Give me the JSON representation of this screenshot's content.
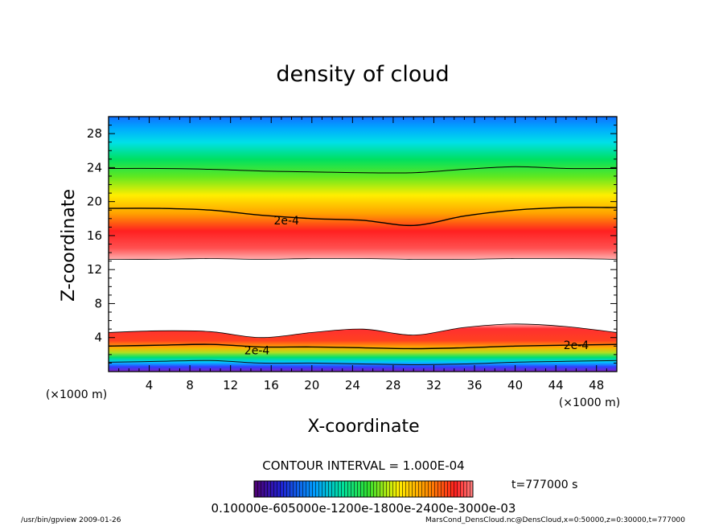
{
  "chart_data": {
    "type": "heatmap",
    "title": "density of cloud",
    "xlabel": "X-coordinate",
    "ylabel": "Z-coordinate",
    "x_unit": "(×1000 m)",
    "y_unit": "(×1000 m)",
    "xlim": [
      0,
      50
    ],
    "ylim": [
      0,
      30
    ],
    "x_ticks": [
      4,
      8,
      12,
      16,
      20,
      24,
      28,
      32,
      36,
      40,
      44,
      48
    ],
    "y_ticks": [
      4,
      8,
      12,
      16,
      20,
      24,
      28
    ],
    "contour_interval_text": "CONTOUR INTERVAL = 1.000E-04",
    "time_label": "t=777000 s",
    "colorbar_text": "0.10000e-605000e-1200e-1800e-2400e-3000e-03",
    "upper_layer": {
      "bottom_km": [
        13.2,
        13.2,
        13.3,
        13.2,
        13.3,
        13.3,
        13.2,
        13.2,
        13.3,
        13.3,
        13.2
      ],
      "contour_2e4_km": [
        19.2,
        19.2,
        19.0,
        18.4,
        18.0,
        17.8,
        17.2,
        18.3,
        19.0,
        19.3,
        19.3
      ],
      "top_contour_km": [
        23.9,
        23.9,
        23.8,
        23.6,
        23.5,
        23.4,
        23.4,
        23.8,
        24.1,
        23.9,
        23.9
      ],
      "contour_labels": [
        {
          "text": "2e-4",
          "x": 17.5,
          "y": 17.8
        }
      ]
    },
    "lower_layer": {
      "top_km": [
        4.6,
        4.8,
        4.7,
        4.0,
        4.6,
        5.0,
        4.3,
        5.2,
        5.6,
        5.3,
        4.6
      ],
      "contour_2e4_km": [
        3.0,
        3.1,
        3.2,
        2.9,
        2.9,
        2.8,
        2.7,
        2.8,
        3.0,
        3.1,
        3.2
      ],
      "contour_labels": [
        {
          "text": "2e-4",
          "x": 14.6,
          "y": 2.5
        },
        {
          "text": "2e-4",
          "x": 46.0,
          "y": 3.1
        }
      ]
    }
  },
  "footer": {
    "left": "/usr/bin/gpview   2009-01-26",
    "right": "MarsCond_DensCloud.nc@DensCloud,x=0:50000,z=0:30000,t=777000"
  }
}
